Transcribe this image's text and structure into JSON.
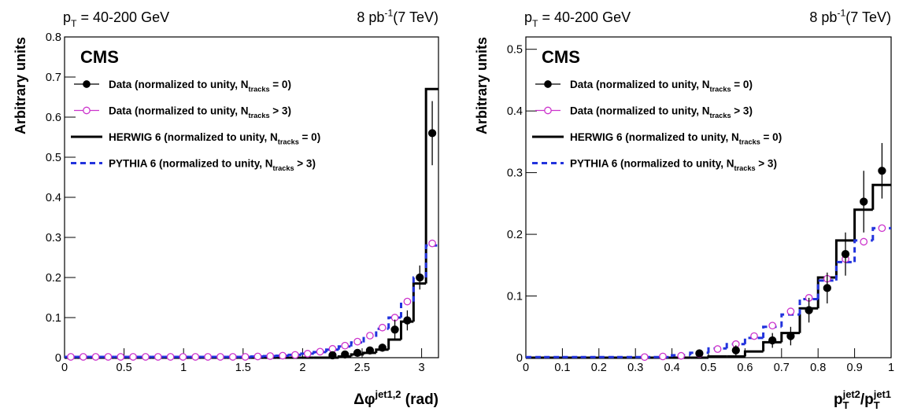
{
  "chart_data": [
    {
      "type": "histogram",
      "annotation_left": [
        {
          "text": "p"
        },
        {
          "text": "T",
          "script": "sub"
        },
        {
          "text": " = 40-200 GeV"
        }
      ],
      "annotation_right": [
        {
          "text": "8 pb"
        },
        {
          "text": "-1",
          "script": "sup"
        },
        {
          "text": "(7 TeV)"
        }
      ],
      "label": "CMS",
      "y_label": "Arbitrary units",
      "x_label": [
        {
          "text": "Δφ"
        },
        {
          "text": "jet1,2",
          "script": "sup"
        },
        {
          "text": " (rad)"
        }
      ],
      "xlim": [
        0,
        3.1416
      ],
      "ylim": [
        0,
        0.8
      ],
      "xticks": [
        0,
        0.5,
        1,
        1.5,
        2,
        2.5,
        3
      ],
      "yticks": [
        0,
        0.1,
        0.2,
        0.3,
        0.4,
        0.5,
        0.6,
        0.7,
        0.8
      ],
      "bins": [
        0,
        0.1047,
        0.2094,
        0.3142,
        0.4189,
        0.5236,
        0.6283,
        0.733,
        0.8378,
        0.9425,
        1.0472,
        1.1519,
        1.2566,
        1.3614,
        1.4661,
        1.5708,
        1.6755,
        1.7802,
        1.885,
        1.9897,
        2.0944,
        2.1991,
        2.3038,
        2.4086,
        2.5133,
        2.618,
        2.7227,
        2.8274,
        2.9322,
        3.0369,
        3.1416
      ],
      "series": [
        {
          "name": [
            {
              "text": "HERWIG 6 (normalized to unity, N"
            },
            {
              "text": "tracks",
              "script": "sub"
            },
            {
              "text": " = 0)"
            }
          ],
          "style": "step",
          "color": "#000000",
          "values": [
            0,
            0,
            0,
            0,
            0,
            0,
            0,
            0,
            0,
            0,
            0,
            0,
            0,
            0,
            0,
            0,
            0,
            0,
            0,
            0,
            0,
            0,
            0.003,
            0.008,
            0.012,
            0.02,
            0.045,
            0.09,
            0.185,
            0.67
          ]
        },
        {
          "name": [
            {
              "text": "PYTHIA 6 (normalized to unity, N"
            },
            {
              "text": "tracks",
              "script": "sub"
            },
            {
              "text": " > 3)"
            }
          ],
          "style": "dashed-step",
          "color": "#2233dd",
          "values": [
            0.002,
            0.002,
            0.002,
            0.002,
            0.002,
            0.002,
            0.002,
            0.002,
            0.002,
            0.002,
            0.002,
            0.002,
            0.002,
            0.002,
            0.002,
            0.003,
            0.004,
            0.005,
            0.007,
            0.01,
            0.014,
            0.02,
            0.028,
            0.038,
            0.052,
            0.072,
            0.1,
            0.14,
            0.2,
            0.28
          ]
        },
        {
          "name": [
            {
              "text": "Data (normalized to unity, N"
            },
            {
              "text": "tracks",
              "script": "sub"
            },
            {
              "text": " > 3)"
            }
          ],
          "style": "open-points",
          "color": "#cc33cc",
          "values": [
            0.002,
            0.002,
            0.002,
            0.002,
            0.002,
            0.002,
            0.002,
            0.002,
            0.002,
            0.002,
            0.002,
            0.002,
            0.002,
            0.002,
            0.002,
            0.003,
            0.004,
            0.005,
            0.007,
            0.01,
            0.015,
            0.022,
            0.03,
            0.04,
            0.055,
            0.075,
            0.1,
            0.14,
            0.2,
            0.285
          ]
        },
        {
          "name": [
            {
              "text": "Data (normalized to unity, N"
            },
            {
              "text": "tracks",
              "script": "sub"
            },
            {
              "text": " = 0)"
            }
          ],
          "style": "points",
          "color": "#000000",
          "values": [
            null,
            null,
            null,
            null,
            null,
            null,
            null,
            null,
            null,
            null,
            null,
            null,
            null,
            null,
            null,
            null,
            null,
            null,
            null,
            null,
            null,
            0.006,
            0.008,
            0.012,
            0.018,
            0.025,
            0.07,
            0.093,
            0.2,
            0.56
          ],
          "errors": [
            null,
            null,
            null,
            null,
            null,
            null,
            null,
            null,
            null,
            null,
            null,
            null,
            null,
            null,
            null,
            null,
            null,
            null,
            null,
            null,
            null,
            0.004,
            0.005,
            0.006,
            0.008,
            0.01,
            0.025,
            0.025,
            0.03,
            0.08
          ]
        }
      ],
      "legend_order": [
        3,
        2,
        0,
        1
      ]
    },
    {
      "type": "histogram",
      "annotation_left": [
        {
          "text": "p"
        },
        {
          "text": "T",
          "script": "sub"
        },
        {
          "text": " = 40-200 GeV"
        }
      ],
      "annotation_right": [
        {
          "text": "8 pb"
        },
        {
          "text": "-1",
          "script": "sup"
        },
        {
          "text": "(7 TeV)"
        }
      ],
      "label": "CMS",
      "y_label": "Arbitrary units",
      "x_label": [
        {
          "text": "p"
        },
        {
          "text": "T",
          "script": "sub"
        },
        {
          "text": "jet2",
          "script": "sup"
        },
        {
          "text": "/p"
        },
        {
          "text": "T",
          "script": "sub"
        },
        {
          "text": "jet1",
          "script": "sup"
        }
      ],
      "xlim": [
        0,
        1
      ],
      "ylim": [
        0,
        0.52
      ],
      "xticks": [
        0,
        0.1,
        0.2,
        0.3,
        0.4,
        0.5,
        0.6,
        0.7,
        0.8,
        0.9,
        1
      ],
      "yticks": [
        0,
        0.1,
        0.2,
        0.3,
        0.4,
        0.5
      ],
      "bins": [
        0,
        0.05,
        0.1,
        0.15,
        0.2,
        0.25,
        0.3,
        0.35,
        0.4,
        0.45,
        0.5,
        0.55,
        0.6,
        0.65,
        0.7,
        0.75,
        0.8,
        0.85,
        0.9,
        0.95,
        1
      ],
      "series": [
        {
          "name": [
            {
              "text": "HERWIG 6 (normalized to unity, N"
            },
            {
              "text": "tracks",
              "script": "sub"
            },
            {
              "text": " = 0)"
            }
          ],
          "style": "step",
          "color": "#000000",
          "values": [
            0,
            0,
            0,
            0,
            0,
            0,
            0,
            0,
            0,
            0,
            0.002,
            0.002,
            0.01,
            0.025,
            0.04,
            0.08,
            0.13,
            0.19,
            0.24,
            0.28
          ]
        },
        {
          "name": [
            {
              "text": "PYTHIA 6 (normalized to unity, N"
            },
            {
              "text": "tracks",
              "script": "sub"
            },
            {
              "text": " > 3)"
            }
          ],
          "style": "dashed-step",
          "color": "#2233dd",
          "values": [
            0.001,
            0.001,
            0.001,
            0.001,
            0.001,
            0.001,
            0.001,
            0.001,
            0.004,
            0.008,
            0.015,
            0.022,
            0.032,
            0.05,
            0.07,
            0.095,
            0.125,
            0.155,
            0.19,
            0.21
          ]
        },
        {
          "name": [
            {
              "text": "Data (normalized to unity, N"
            },
            {
              "text": "tracks",
              "script": "sub"
            },
            {
              "text": " > 3)"
            }
          ],
          "style": "open-points",
          "color": "#cc33cc",
          "values": [
            null,
            null,
            null,
            null,
            null,
            null,
            0.001,
            0.002,
            0.003,
            0.006,
            0.014,
            0.022,
            0.035,
            0.052,
            0.075,
            0.097,
            0.128,
            0.16,
            0.188,
            0.21
          ]
        },
        {
          "name": [
            {
              "text": "Data (normalized to unity, N"
            },
            {
              "text": "tracks",
              "script": "sub"
            },
            {
              "text": " = 0)"
            }
          ],
          "style": "points",
          "color": "#000000",
          "values": [
            null,
            null,
            null,
            null,
            null,
            null,
            null,
            null,
            null,
            0.007,
            null,
            0.012,
            null,
            0.028,
            0.035,
            0.077,
            0.113,
            0.168,
            0.253,
            0.303
          ],
          "errors": [
            null,
            null,
            null,
            null,
            null,
            null,
            null,
            null,
            null,
            0.005,
            null,
            0.008,
            null,
            0.012,
            0.015,
            0.02,
            0.025,
            0.035,
            0.05,
            0.045
          ]
        }
      ],
      "legend_order": [
        3,
        2,
        0,
        1
      ]
    }
  ]
}
